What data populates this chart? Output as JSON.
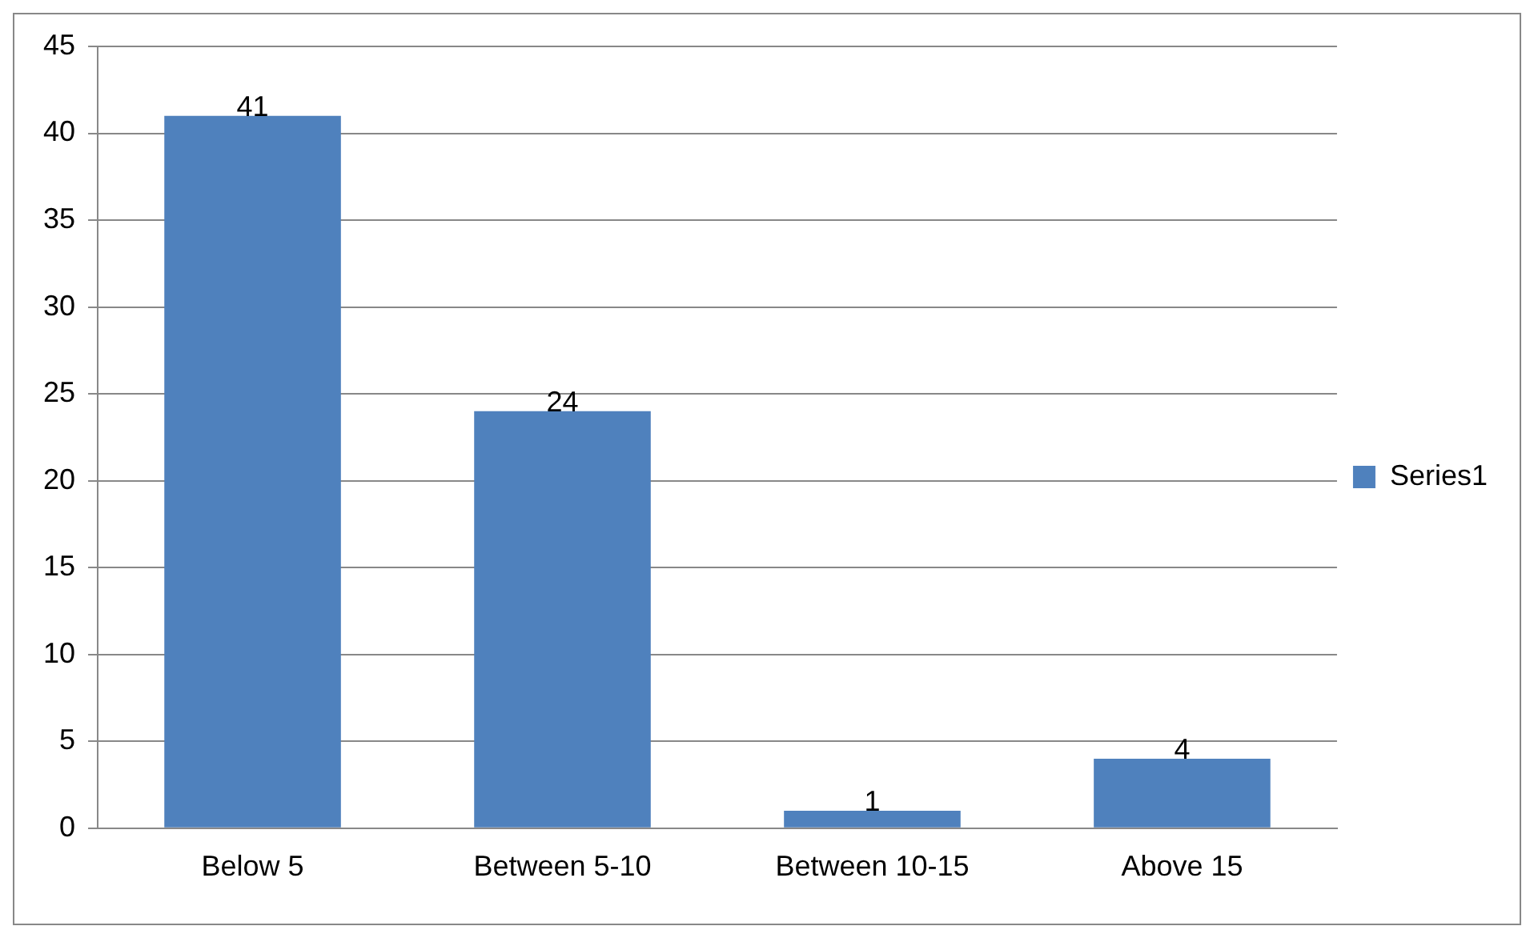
{
  "chart_data": {
    "type": "bar",
    "categories": [
      "Below 5",
      "Between 5-10",
      "Between 10-15",
      "Above 15"
    ],
    "series": [
      {
        "name": "Series1",
        "color": "#4f81bd",
        "values": [
          41,
          24,
          1,
          4
        ]
      }
    ],
    "ylim": [
      0,
      45
    ],
    "yticks": [
      0,
      5,
      10,
      15,
      20,
      25,
      30,
      35,
      40,
      45
    ],
    "grid": "y",
    "legend": "right",
    "data_labels": true
  }
}
